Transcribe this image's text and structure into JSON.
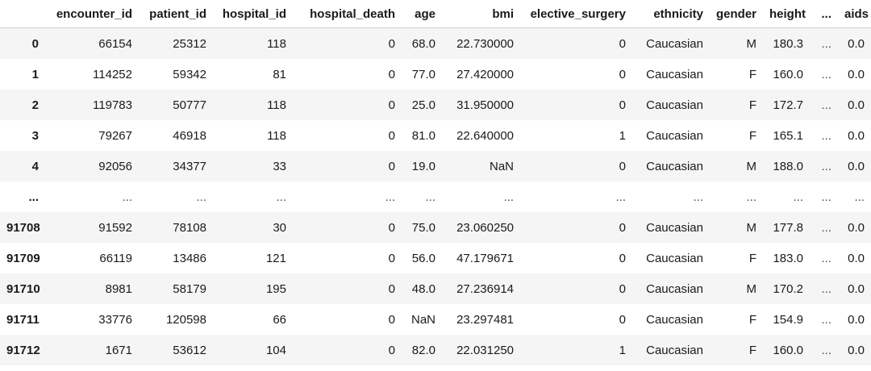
{
  "table": {
    "columns": [
      "encounter_id",
      "patient_id",
      "hospital_id",
      "hospital_death",
      "age",
      "bmi",
      "elective_surgery",
      "ethnicity",
      "gender",
      "height",
      "...",
      "aids"
    ],
    "rows": [
      {
        "index": "0",
        "cells": [
          "66154",
          "25312",
          "118",
          "0",
          "68.0",
          "22.730000",
          "0",
          "Caucasian",
          "M",
          "180.3",
          "...",
          "0.0"
        ]
      },
      {
        "index": "1",
        "cells": [
          "114252",
          "59342",
          "81",
          "0",
          "77.0",
          "27.420000",
          "0",
          "Caucasian",
          "F",
          "160.0",
          "...",
          "0.0"
        ]
      },
      {
        "index": "2",
        "cells": [
          "119783",
          "50777",
          "118",
          "0",
          "25.0",
          "31.950000",
          "0",
          "Caucasian",
          "F",
          "172.7",
          "...",
          "0.0"
        ]
      },
      {
        "index": "3",
        "cells": [
          "79267",
          "46918",
          "118",
          "0",
          "81.0",
          "22.640000",
          "1",
          "Caucasian",
          "F",
          "165.1",
          "...",
          "0.0"
        ]
      },
      {
        "index": "4",
        "cells": [
          "92056",
          "34377",
          "33",
          "0",
          "19.0",
          "NaN",
          "0",
          "Caucasian",
          "M",
          "188.0",
          "...",
          "0.0"
        ]
      },
      {
        "index": "...",
        "cells": [
          "...",
          "...",
          "...",
          "...",
          "...",
          "...",
          "...",
          "...",
          "...",
          "...",
          "...",
          "..."
        ]
      },
      {
        "index": "91708",
        "cells": [
          "91592",
          "78108",
          "30",
          "0",
          "75.0",
          "23.060250",
          "0",
          "Caucasian",
          "M",
          "177.8",
          "...",
          "0.0"
        ]
      },
      {
        "index": "91709",
        "cells": [
          "66119",
          "13486",
          "121",
          "0",
          "56.0",
          "47.179671",
          "0",
          "Caucasian",
          "F",
          "183.0",
          "...",
          "0.0"
        ]
      },
      {
        "index": "91710",
        "cells": [
          "8981",
          "58179",
          "195",
          "0",
          "48.0",
          "27.236914",
          "0",
          "Caucasian",
          "M",
          "170.2",
          "...",
          "0.0"
        ]
      },
      {
        "index": "91711",
        "cells": [
          "33776",
          "120598",
          "66",
          "0",
          "NaN",
          "23.297481",
          "0",
          "Caucasian",
          "F",
          "154.9",
          "...",
          "0.0"
        ]
      },
      {
        "index": "91712",
        "cells": [
          "1671",
          "53612",
          "104",
          "0",
          "82.0",
          "22.031250",
          "1",
          "Caucasian",
          "F",
          "160.0",
          "...",
          "0.0"
        ]
      }
    ]
  }
}
